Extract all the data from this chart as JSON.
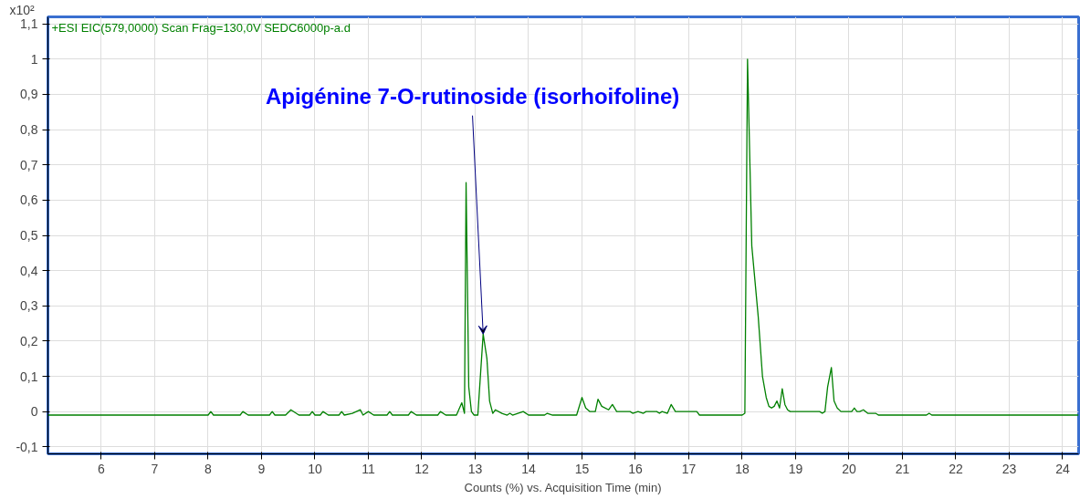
{
  "chart_data": {
    "type": "line",
    "title": "+ESI EIC(579,0000) Scan Frag=130,0V SEDC6000p-a.d",
    "xlabel": "Counts (%) vs. Acquisition Time (min)",
    "ylabel": "x10²",
    "annotations": [
      {
        "text": "Apigénine 7-O-rutinoside (isorhoifoline)",
        "x": 13.15,
        "y": 0.22
      }
    ],
    "series": [
      {
        "color": "#008000",
        "x": [
          5.0,
          8.0,
          8.05,
          8.1,
          8.6,
          8.65,
          8.75,
          9.15,
          9.2,
          9.25,
          9.45,
          9.55,
          9.7,
          9.9,
          9.95,
          10.0,
          10.1,
          10.15,
          10.25,
          10.45,
          10.5,
          10.55,
          10.7,
          10.85,
          10.9,
          11.0,
          11.1,
          11.35,
          11.4,
          11.45,
          11.75,
          11.8,
          11.9,
          12.3,
          12.35,
          12.45,
          12.65,
          12.75,
          12.8,
          12.83,
          12.88,
          12.93,
          12.98,
          13.05,
          13.15,
          13.22,
          13.27,
          13.33,
          13.38,
          13.5,
          13.6,
          13.65,
          13.7,
          13.9,
          14.0,
          14.3,
          14.35,
          14.45,
          14.9,
          15.0,
          15.07,
          15.15,
          15.25,
          15.3,
          15.37,
          15.5,
          15.57,
          15.65,
          15.9,
          15.95,
          16.05,
          16.15,
          16.2,
          16.4,
          16.45,
          16.5,
          16.6,
          16.67,
          16.75,
          17.15,
          17.2,
          18.0,
          18.05,
          18.1,
          18.18,
          18.3,
          18.38,
          18.45,
          18.5,
          18.55,
          18.6,
          18.65,
          18.7,
          18.75,
          18.8,
          18.85,
          18.9,
          19.45,
          19.5,
          19.55,
          19.6,
          19.67,
          19.72,
          19.78,
          19.85,
          20.05,
          20.1,
          20.15,
          20.2,
          20.27,
          20.35,
          20.5,
          20.55,
          21.45,
          21.5,
          21.55,
          24.3
        ],
        "values": [
          -0.01,
          -0.01,
          0.0,
          -0.01,
          -0.01,
          0.0,
          -0.01,
          -0.01,
          0.0,
          -0.01,
          -0.01,
          0.005,
          -0.01,
          -0.01,
          0.0,
          -0.01,
          -0.01,
          0.0,
          -0.01,
          -0.01,
          0.0,
          -0.01,
          -0.005,
          0.005,
          -0.01,
          0.0,
          -0.01,
          -0.01,
          0.0,
          -0.01,
          -0.01,
          0.0,
          -0.01,
          -0.01,
          0.0,
          -0.01,
          -0.01,
          0.025,
          -0.005,
          0.65,
          0.07,
          0.0,
          -0.01,
          -0.01,
          0.22,
          0.15,
          0.03,
          -0.005,
          0.005,
          -0.005,
          -0.01,
          -0.005,
          -0.01,
          0.0,
          -0.01,
          -0.01,
          -0.005,
          -0.01,
          -0.01,
          0.04,
          0.01,
          0.0,
          0.0,
          0.035,
          0.015,
          0.005,
          0.02,
          0.0,
          0.0,
          -0.005,
          0.0,
          -0.005,
          0.0,
          0.0,
          -0.005,
          0.0,
          -0.005,
          0.02,
          0.0,
          0.0,
          -0.01,
          -0.01,
          -0.005,
          1.0,
          0.47,
          0.27,
          0.1,
          0.04,
          0.015,
          0.01,
          0.015,
          0.03,
          0.01,
          0.065,
          0.02,
          0.005,
          0.0,
          0.0,
          -0.005,
          0.0,
          0.07,
          0.125,
          0.03,
          0.01,
          0.0,
          0.0,
          0.01,
          0.0,
          0.0,
          0.005,
          -0.005,
          -0.005,
          -0.01,
          -0.01,
          -0.005,
          -0.01,
          -0.01
        ]
      }
    ],
    "xlim": [
      5.0,
      24.3
    ],
    "ylim": [
      -0.12,
      1.12
    ],
    "xticks": [
      6,
      7,
      8,
      9,
      10,
      11,
      12,
      13,
      14,
      15,
      16,
      17,
      18,
      19,
      20,
      21,
      22,
      23,
      24
    ],
    "yticks": [
      {
        "value": -0.1,
        "label": "-0,1"
      },
      0,
      {
        "value": 0.1,
        "label": "0,1"
      },
      {
        "value": 0.2,
        "label": "0,2"
      },
      {
        "value": 0.3,
        "label": "0,3"
      },
      {
        "value": 0.4,
        "label": "0,4"
      },
      {
        "value": 0.5,
        "label": "0,5"
      },
      {
        "value": 0.6,
        "label": "0,6"
      },
      {
        "value": 0.7,
        "label": "0,7"
      },
      {
        "value": 0.8,
        "label": "0,8"
      },
      {
        "value": 0.9,
        "label": "0,9"
      },
      1,
      {
        "value": 1.1,
        "label": "1,1"
      }
    ],
    "grid": true,
    "marker": "none",
    "line_style": "solid"
  }
}
